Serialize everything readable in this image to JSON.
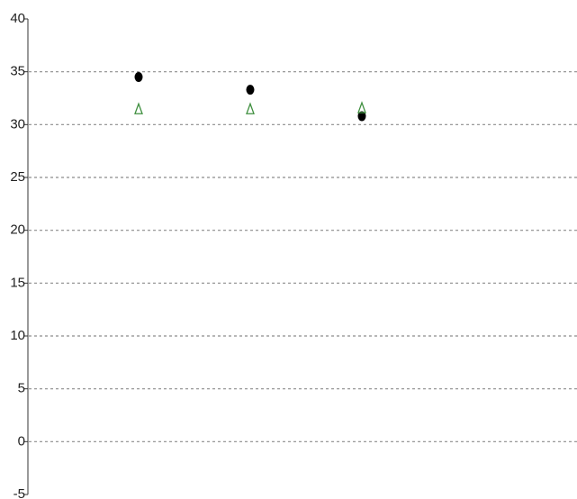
{
  "chart_data": {
    "type": "scatter",
    "title": "",
    "xlabel": "",
    "ylabel": "",
    "ylim": [
      -5,
      40
    ],
    "yticks": [
      "-5",
      "0",
      "5",
      "10",
      "15",
      "20",
      "25",
      "30",
      "35",
      "40"
    ],
    "ygrid_values": [
      0,
      5,
      10,
      15,
      20,
      25,
      30,
      35
    ],
    "grid": true,
    "legend": "none",
    "x": [
      1,
      2,
      3
    ],
    "series": [
      {
        "marker": "filled-circle",
        "color": "#000000",
        "values": [
          34.5,
          33.3,
          30.8
        ]
      },
      {
        "marker": "open-triangle",
        "color": "#3f8f3f",
        "values": [
          31.5,
          31.5,
          31.6
        ]
      }
    ]
  }
}
